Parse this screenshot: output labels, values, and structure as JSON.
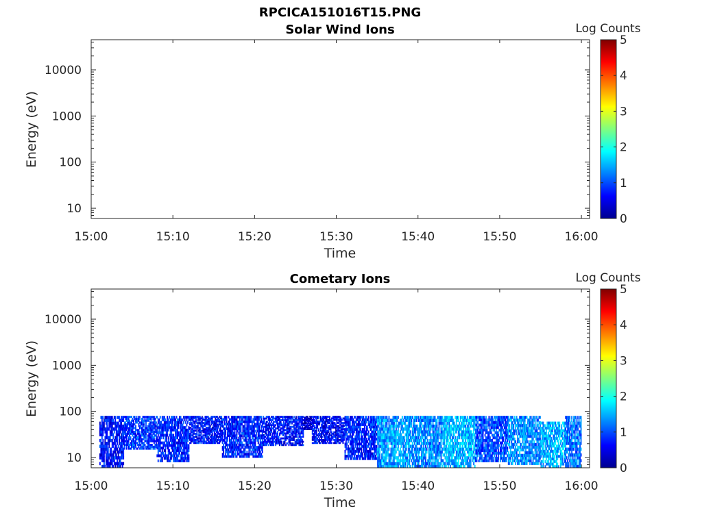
{
  "figure": {
    "title": "RPCICA151016T15.PNG"
  },
  "chart_data": [
    {
      "type": "heatmap",
      "title": "Solar Wind Ions",
      "xlabel": "Time",
      "ylabel": "Energy (eV)",
      "xticks": [
        "15:00",
        "15:10",
        "15:20",
        "15:30",
        "15:40",
        "15:50",
        "16:00"
      ],
      "xlim": [
        "15:00",
        "16:01"
      ],
      "yscale": "log",
      "yticks": [
        10,
        100,
        1000,
        10000
      ],
      "ytick_labels": [
        "10",
        "100",
        "1000",
        "10000"
      ],
      "ylim": [
        6,
        45000
      ],
      "colorbar": {
        "label": "Log Counts",
        "range": [
          0,
          5
        ],
        "ticks": [
          "0",
          "1",
          "2",
          "3",
          "4",
          "5"
        ],
        "colormap": "jet"
      },
      "data_present": false,
      "blocks": []
    },
    {
      "type": "heatmap",
      "title": "Cometary Ions",
      "xlabel": "Time",
      "ylabel": "Energy (eV)",
      "xticks": [
        "15:00",
        "15:10",
        "15:20",
        "15:30",
        "15:40",
        "15:50",
        "16:00"
      ],
      "xlim": [
        "15:00",
        "16:01"
      ],
      "yscale": "log",
      "yticks": [
        10,
        100,
        1000,
        10000
      ],
      "ytick_labels": [
        "10",
        "100",
        "1000",
        "10000"
      ],
      "ylim": [
        6,
        45000
      ],
      "colorbar": {
        "label": "Log Counts",
        "range": [
          0,
          5
        ],
        "ticks": [
          "0",
          "1",
          "2",
          "3",
          "4",
          "5"
        ],
        "colormap": "jet"
      },
      "data_present": true,
      "energy_max_eV": 80,
      "blocks": [
        {
          "t_start": "15:01",
          "t_end": "15:04",
          "e_low": 6,
          "e_high": 80,
          "log_counts": 0.7
        },
        {
          "t_start": "15:04",
          "t_end": "15:08",
          "e_low": 15,
          "e_high": 80,
          "log_counts": 0.9
        },
        {
          "t_start": "15:08",
          "t_end": "15:12",
          "e_low": 8,
          "e_high": 80,
          "log_counts": 0.8
        },
        {
          "t_start": "15:12",
          "t_end": "15:16",
          "e_low": 20,
          "e_high": 80,
          "log_counts": 0.7
        },
        {
          "t_start": "15:16",
          "t_end": "15:21",
          "e_low": 10,
          "e_high": 80,
          "log_counts": 0.8
        },
        {
          "t_start": "15:21",
          "t_end": "15:26",
          "e_low": 18,
          "e_high": 80,
          "log_counts": 0.7
        },
        {
          "t_start": "15:26",
          "t_end": "15:27",
          "e_low": 40,
          "e_high": 80,
          "log_counts": 0.3
        },
        {
          "t_start": "15:27",
          "t_end": "15:31",
          "e_low": 20,
          "e_high": 80,
          "log_counts": 0.6
        },
        {
          "t_start": "15:31",
          "t_end": "15:35",
          "e_low": 9,
          "e_high": 80,
          "log_counts": 0.8
        },
        {
          "t_start": "15:35",
          "t_end": "15:39",
          "e_low": 6,
          "e_high": 80,
          "log_counts": 1.4
        },
        {
          "t_start": "15:39",
          "t_end": "15:43",
          "e_low": 6,
          "e_high": 80,
          "log_counts": 1.3
        },
        {
          "t_start": "15:43",
          "t_end": "15:47",
          "e_low": 6,
          "e_high": 80,
          "log_counts": 1.5
        },
        {
          "t_start": "15:47",
          "t_end": "15:51",
          "e_low": 8,
          "e_high": 80,
          "log_counts": 1.0
        },
        {
          "t_start": "15:51",
          "t_end": "15:55",
          "e_low": 7,
          "e_high": 80,
          "log_counts": 1.3
        },
        {
          "t_start": "15:55",
          "t_end": "15:58",
          "e_low": 6,
          "e_high": 60,
          "log_counts": 1.5
        },
        {
          "t_start": "15:58",
          "t_end": "16:00",
          "e_low": 6,
          "e_high": 80,
          "log_counts": 1.2
        }
      ]
    }
  ]
}
